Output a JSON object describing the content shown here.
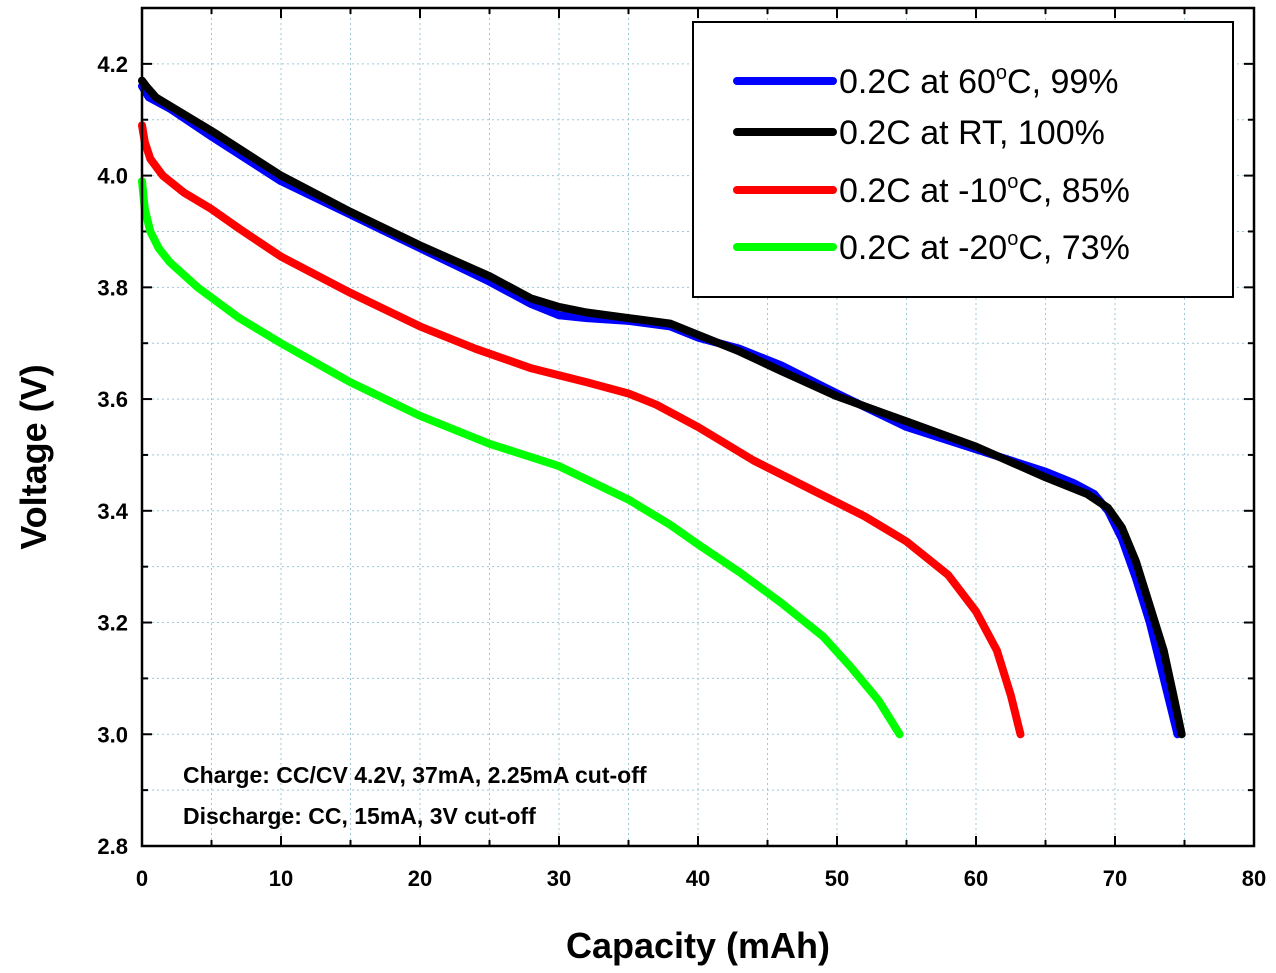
{
  "chart_data": {
    "type": "line",
    "xlabel": "Capacity (mAh)",
    "ylabel": "Voltage (V)",
    "xlim": [
      0,
      80
    ],
    "ylim": [
      2.8,
      4.3
    ],
    "x_ticks": [
      "0",
      "10",
      "20",
      "30",
      "40",
      "50",
      "60",
      "70",
      "80"
    ],
    "y_ticks": [
      "2.8",
      "3.0",
      "3.2",
      "3.4",
      "3.6",
      "3.8",
      "4.0",
      "4.2"
    ],
    "grid": true,
    "legend_position": "top-right",
    "series": [
      {
        "name": "0.2C at 60°C, 99%",
        "label_main": "0.2C at 60",
        "label_sup": "o",
        "label_tail": "C, 99%",
        "color": "#0000ff",
        "x": [
          0,
          0.5,
          2,
          5,
          10,
          15,
          20,
          25,
          28,
          30,
          32,
          35,
          38,
          40,
          43,
          46,
          50,
          55,
          60,
          65,
          67,
          68.5,
          69.5,
          70.5,
          71.5,
          72.5,
          73.3,
          74,
          74.5
        ],
        "y": [
          4.16,
          4.14,
          4.12,
          4.07,
          3.99,
          3.93,
          3.87,
          3.81,
          3.77,
          3.75,
          3.745,
          3.74,
          3.73,
          3.71,
          3.69,
          3.66,
          3.61,
          3.55,
          3.51,
          3.47,
          3.45,
          3.43,
          3.4,
          3.35,
          3.28,
          3.2,
          3.12,
          3.05,
          3.0
        ]
      },
      {
        "name": "0.2C at RT, 100%",
        "label_main": "0.2C at RT, 100%",
        "label_sup": "",
        "label_tail": "",
        "color": "#000000",
        "x": [
          0,
          0.3,
          1,
          2,
          5,
          10,
          15,
          20,
          25,
          28,
          30,
          32,
          35,
          38,
          40,
          43,
          46,
          50,
          55,
          60,
          65,
          68,
          69.5,
          70.5,
          71.5,
          72.5,
          73.5,
          74.2,
          74.8
        ],
        "y": [
          4.17,
          4.16,
          4.14,
          4.125,
          4.08,
          4.0,
          3.935,
          3.875,
          3.82,
          3.78,
          3.765,
          3.755,
          3.745,
          3.735,
          3.715,
          3.685,
          3.65,
          3.605,
          3.56,
          3.515,
          3.46,
          3.43,
          3.405,
          3.37,
          3.31,
          3.23,
          3.15,
          3.07,
          3.0
        ]
      },
      {
        "name": "0.2C at -10°C, 85%",
        "label_main": "0.2C at -10",
        "label_sup": "o",
        "label_tail": "C, 85%",
        "color": "#ff0000",
        "x": [
          0,
          0.2,
          0.6,
          1.5,
          3,
          5,
          7,
          10,
          15,
          20,
          24,
          28,
          32,
          35,
          37,
          40,
          44,
          48,
          52,
          55,
          58,
          60,
          61.5,
          62.5,
          63.2
        ],
        "y": [
          4.09,
          4.06,
          4.03,
          4.0,
          3.97,
          3.94,
          3.905,
          3.855,
          3.79,
          3.73,
          3.69,
          3.655,
          3.63,
          3.61,
          3.59,
          3.55,
          3.49,
          3.44,
          3.39,
          3.345,
          3.285,
          3.22,
          3.15,
          3.07,
          3.0
        ]
      },
      {
        "name": "0.2C at -20°C, 73%",
        "label_main": "0.2C at -20",
        "label_sup": "o",
        "label_tail": "C, 73%",
        "color": "#00ff00",
        "x": [
          0,
          0.2,
          0.6,
          1.2,
          2,
          4,
          7,
          10,
          15,
          20,
          25,
          30,
          35,
          38,
          40,
          43,
          46,
          49,
          51,
          53,
          54.5
        ],
        "y": [
          3.99,
          3.94,
          3.9,
          3.87,
          3.845,
          3.8,
          3.745,
          3.7,
          3.63,
          3.57,
          3.52,
          3.48,
          3.42,
          3.375,
          3.34,
          3.29,
          3.235,
          3.175,
          3.12,
          3.06,
          3.0
        ]
      }
    ]
  },
  "annotation": {
    "line1": "Charge: CC/CV 4.2V, 37mA, 2.25mA cut-off",
    "line2": "Discharge: CC, 15mA, 3V cut-off"
  }
}
